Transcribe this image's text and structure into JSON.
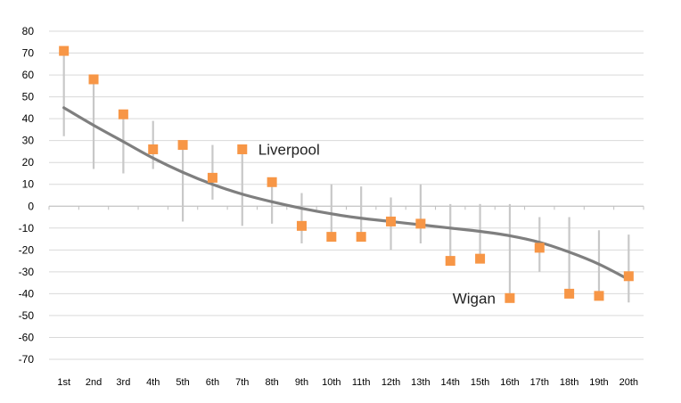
{
  "chart_data": {
    "type": "scatter",
    "title": "",
    "xlabel": "",
    "ylabel": "",
    "ylim": [
      -70,
      80
    ],
    "yticks": [
      80,
      70,
      60,
      50,
      40,
      30,
      20,
      10,
      0,
      -10,
      -20,
      -30,
      -40,
      -50,
      -60,
      -70
    ],
    "grid": true,
    "categories": [
      "1st",
      "2nd",
      "3rd",
      "4th",
      "5th",
      "6th",
      "7th",
      "8th",
      "9th",
      "10th",
      "11th",
      "12th",
      "13th",
      "14th",
      "15th",
      "16th",
      "17th",
      "18th",
      "19th",
      "20th"
    ],
    "series": [
      {
        "marker": "square",
        "color": "#f79646",
        "values": [
          71,
          58,
          42,
          26,
          28,
          13,
          26,
          11,
          -9,
          -14,
          -14,
          -7,
          -8,
          -25,
          -24,
          -42,
          -19,
          -40,
          -41,
          -32
        ]
      }
    ],
    "ranges": {
      "color": "#c8c8c8",
      "low": [
        32,
        17,
        15,
        17,
        -7,
        3,
        -9,
        -8,
        -17,
        -14,
        -14,
        -20,
        -17,
        -25,
        -24,
        -42,
        -30,
        -40,
        -41,
        -44
      ],
      "high": [
        71,
        58,
        42,
        39,
        28,
        28,
        26,
        11,
        6,
        10,
        9,
        4,
        10,
        1,
        1,
        1,
        -5,
        -5,
        -11,
        -13
      ]
    },
    "trend": {
      "color": "#7f7f7f",
      "values": [
        45,
        37,
        29.5,
        22,
        15.5,
        10,
        5.5,
        2,
        -1,
        -3.5,
        -5.5,
        -7,
        -8.5,
        -10,
        -11.5,
        -13.5,
        -16.5,
        -21,
        -26.5,
        -33.5
      ]
    },
    "annotations": [
      {
        "text": "Liverpool",
        "category": "7th",
        "value": 26
      },
      {
        "text": "Wigan",
        "category": "16th",
        "value": -42
      }
    ]
  }
}
